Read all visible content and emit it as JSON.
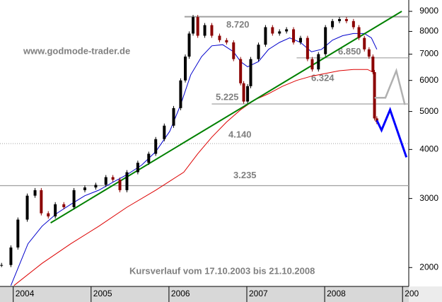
{
  "chart_data": {
    "type": "candlestick",
    "source": "www.godmode-trader.de",
    "caption": "Kursverlauf vom 17.10.2003 bis 21.10.2008",
    "log_scale": true,
    "ylim": [
      1790,
      9620
    ],
    "yticks": [
      2000,
      3000,
      4000,
      5000,
      6000,
      7000,
      8000,
      9000
    ],
    "xlim": [
      2003.83,
      2009.08
    ],
    "xticks": [
      2004,
      2005,
      2006,
      2007,
      2008,
      {
        "value": 2009,
        "label": "200"
      }
    ],
    "price": {
      "up_color": "#000000",
      "down_color": "#8b0000",
      "x": [
        2003.85,
        2003.97,
        2004.06,
        2004.18,
        2004.28,
        2004.36,
        2004.45,
        2004.54,
        2004.65,
        2004.78,
        2004.92,
        2005.06,
        2005.19,
        2005.28,
        2005.37,
        2005.46,
        2005.6,
        2005.74,
        2005.83,
        2005.94,
        2006.06,
        2006.15,
        2006.21,
        2006.26,
        2006.31,
        2006.37,
        2006.46,
        2006.55,
        2006.65,
        2006.74,
        2006.83,
        2006.92,
        2006.96,
        2007.01,
        2007.05,
        2007.15,
        2007.24,
        2007.33,
        2007.42,
        2007.51,
        2007.6,
        2007.69,
        2007.78,
        2007.84,
        2007.92,
        2008.01,
        2008.1,
        2008.19,
        2008.28,
        2008.37,
        2008.44,
        2008.51,
        2008.57,
        2008.62,
        2008.64,
        2008.67
      ],
      "values": [
        2030,
        2250,
        2650,
        3050,
        3150,
        2750,
        2700,
        2900,
        2850,
        3150,
        3200,
        3250,
        3400,
        3350,
        3150,
        3500,
        3700,
        3900,
        4250,
        4600,
        5100,
        6000,
        6900,
        7900,
        8700,
        7800,
        8300,
        7800,
        7600,
        7500,
        6800,
        5900,
        5300,
        5800,
        6800,
        7400,
        8200,
        7900,
        8000,
        8100,
        7500,
        7700,
        6800,
        6400,
        7000,
        8200,
        8500,
        8600,
        8500,
        8200,
        7700,
        7200,
        6900,
        6300,
        4800,
        4700
      ]
    },
    "ma_short": {
      "color": "#0000cc",
      "x": [
        2003.97,
        2004.19,
        2004.37,
        2004.56,
        2004.74,
        2004.92,
        2005.1,
        2005.28,
        2005.46,
        2005.65,
        2005.83,
        2006.01,
        2006.15,
        2006.28,
        2006.42,
        2006.55,
        2006.69,
        2006.83,
        2006.92,
        2007.01,
        2007.15,
        2007.28,
        2007.42,
        2007.55,
        2007.69,
        2007.83,
        2007.96,
        2008.1,
        2008.23,
        2008.37,
        2008.51,
        2008.6,
        2008.67
      ],
      "values": [
        1800,
        2300,
        2550,
        2750,
        2900,
        3050,
        3150,
        3300,
        3450,
        3650,
        3950,
        4450,
        5200,
        6200,
        6900,
        7350,
        7400,
        7100,
        6700,
        6500,
        6700,
        7200,
        7500,
        7700,
        7500,
        7100,
        7200,
        7600,
        7800,
        7900,
        7900,
        7700,
        7200
      ]
    },
    "ma_long": {
      "color": "#dd0000",
      "x": [
        2004.01,
        2004.37,
        2004.74,
        2005.1,
        2005.46,
        2005.83,
        2006.19,
        2006.37,
        2006.55,
        2006.74,
        2006.92,
        2007.1,
        2007.28,
        2007.46,
        2007.64,
        2007.83,
        2008.01,
        2008.19,
        2008.37,
        2008.55,
        2008.62
      ],
      "values": [
        1800,
        2050,
        2300,
        2550,
        2850,
        3150,
        3500,
        3900,
        4300,
        4700,
        5050,
        5350,
        5550,
        5800,
        6000,
        6150,
        6250,
        6350,
        6400,
        6400,
        6300
      ]
    },
    "trendline": {
      "color": "#008000",
      "x": [
        2004.48,
        2008.99
      ],
      "values": [
        2600,
        9000
      ]
    },
    "projection_gray": {
      "color": "#b0b0b0",
      "x": [
        2008.64,
        2008.78,
        2008.92,
        2009.03
      ],
      "values": [
        5420,
        5420,
        6350,
        5200
      ]
    },
    "projection_blue": {
      "color": "#0000ff",
      "x": [
        2008.67,
        2008.73,
        2008.84,
        2009.05
      ],
      "values": [
        4745,
        4480,
        5050,
        3820
      ]
    },
    "levels": [
      {
        "value": 8720,
        "label": "8.720",
        "x_start": 2006.2,
        "style": "solid"
      },
      {
        "value": 6850,
        "label": "6.850",
        "x_start": 2007.64,
        "style": "solid"
      },
      {
        "value": 6324,
        "label": "6.324"
      },
      {
        "value": 5225,
        "label": "5.225",
        "x_start": 2006.55,
        "style": "solid"
      },
      {
        "value": 4140,
        "label": "4.140",
        "x_start": 2003.83,
        "style": "dotted"
      },
      {
        "value": 3235,
        "label": "3.235",
        "x_start": 2003.83,
        "style": "solid"
      }
    ]
  }
}
